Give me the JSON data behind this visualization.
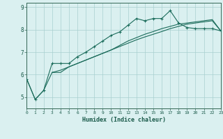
{
  "xlabel": "Humidex (Indice chaleur)",
  "bg_color": "#daf0f0",
  "grid_color": "#a8d0d0",
  "line_color": "#1a6b5a",
  "xlim": [
    0,
    23
  ],
  "ylim": [
    4.5,
    9.2
  ],
  "xticks": [
    0,
    1,
    2,
    3,
    4,
    5,
    6,
    7,
    8,
    9,
    10,
    11,
    12,
    13,
    14,
    15,
    16,
    17,
    18,
    19,
    20,
    21,
    22,
    23
  ],
  "yticks": [
    5,
    6,
    7,
    8,
    9
  ],
  "line1_x": [
    0,
    1,
    2,
    3,
    4,
    5,
    6,
    7,
    8,
    9,
    10,
    11,
    12,
    13,
    14,
    15,
    16,
    17,
    18,
    19,
    20,
    21,
    22,
    23
  ],
  "line1_y": [
    5.8,
    4.9,
    5.3,
    6.5,
    6.5,
    6.5,
    6.8,
    7.0,
    7.25,
    7.5,
    7.75,
    7.9,
    8.2,
    8.5,
    8.4,
    8.5,
    8.5,
    8.85,
    8.3,
    8.1,
    8.05,
    8.05,
    8.05,
    7.95
  ],
  "line2_x": [
    3,
    4,
    5,
    6,
    7,
    8,
    9,
    10,
    11,
    12,
    13,
    14,
    15,
    16,
    17,
    18,
    19,
    20,
    21,
    22,
    23
  ],
  "line2_y": [
    6.1,
    6.1,
    6.35,
    6.5,
    6.65,
    6.8,
    6.95,
    7.1,
    7.3,
    7.5,
    7.65,
    7.8,
    7.92,
    8.05,
    8.15,
    8.25,
    8.3,
    8.35,
    8.4,
    8.45,
    7.95
  ],
  "line3_x": [
    0,
    1,
    2,
    3,
    4,
    5,
    6,
    7,
    8,
    9,
    10,
    11,
    12,
    13,
    14,
    15,
    16,
    17,
    18,
    19,
    20,
    21,
    22,
    23
  ],
  "line3_y": [
    5.8,
    4.9,
    5.3,
    6.1,
    6.2,
    6.35,
    6.5,
    6.65,
    6.8,
    6.95,
    7.1,
    7.25,
    7.4,
    7.55,
    7.68,
    7.8,
    7.92,
    8.05,
    8.15,
    8.25,
    8.3,
    8.35,
    8.4,
    7.95
  ]
}
